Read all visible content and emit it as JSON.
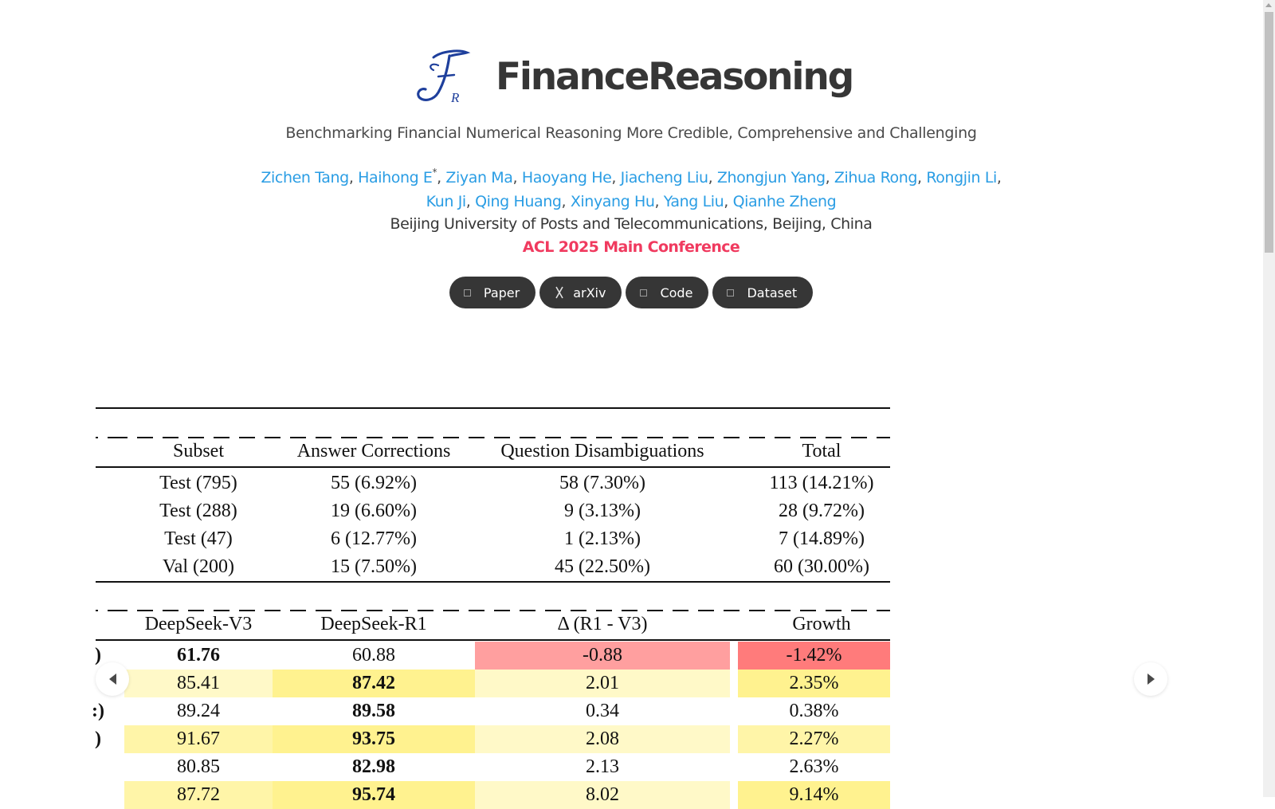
{
  "header": {
    "logo_letters": "F",
    "logo_sub": "R",
    "title": "FinanceReasoning",
    "subtitle": "Benchmarking Financial Numerical Reasoning More Credible, Comprehensive and Challenging",
    "authors_line1": [
      {
        "name": "Zichen Tang"
      },
      {
        "name": "Haihong E",
        "sup": "*"
      },
      {
        "name": "Ziyan Ma"
      },
      {
        "name": "Haoyang He"
      },
      {
        "name": "Jiacheng Liu"
      },
      {
        "name": "Zhongjun Yang"
      },
      {
        "name": "Zihua Rong"
      },
      {
        "name": "Rongjin Li"
      }
    ],
    "authors_line2": [
      {
        "name": "Kun Ji"
      },
      {
        "name": "Qing Huang"
      },
      {
        "name": "Xinyang Hu"
      },
      {
        "name": "Yang Liu"
      },
      {
        "name": "Qianhe Zheng"
      }
    ],
    "affiliation": "Beijing University of Posts and Telecommunications, Beijing, China",
    "venue": "ACL 2025 Main Conference"
  },
  "buttons": [
    {
      "label": "Paper",
      "icon": "file-icon"
    },
    {
      "label": "arXiv",
      "icon": "arxiv-icon"
    },
    {
      "label": "Code",
      "icon": "github-icon"
    },
    {
      "label": "Dataset",
      "icon": "database-icon"
    }
  ],
  "colors": {
    "link": "#2a9de4",
    "venue": "#f03a5f",
    "button_bg": "#363636",
    "heat_red_strong": "#ff7b7b",
    "heat_red_light": "#ff9f9f",
    "heat_yellow_strong": "#fff28f",
    "heat_yellow_mid": "#fff5a8",
    "heat_yellow_light": "#fff9c8"
  },
  "table1": {
    "headers": [
      "Subset",
      "Answer Corrections",
      "Question Disambiguations",
      "Total"
    ],
    "rows": [
      [
        "Test (795)",
        "55 (6.92%)",
        "58 (7.30%)",
        "113 (14.21%)"
      ],
      [
        "Test (288)",
        "19 (6.60%)",
        "9 (3.13%)",
        "28 (9.72%)"
      ],
      [
        "Test (47)",
        "6 (12.77%)",
        "1 (2.13%)",
        "7 (14.89%)"
      ],
      [
        "Val (200)",
        "15 (7.50%)",
        "45 (22.50%)",
        "60 (30.00%)"
      ]
    ]
  },
  "table2": {
    "headers": [
      "DeepSeek-V3",
      "DeepSeek-R1",
      "Δ (R1 - V3)",
      "Growth"
    ],
    "row_label_fragments": [
      ")",
      "",
      ":)",
      ")",
      "",
      ""
    ],
    "rows": [
      [
        "61.76",
        "60.88",
        "-0.88",
        "-1.42%"
      ],
      [
        "85.41",
        "87.42",
        "2.01",
        "2.35%"
      ],
      [
        "89.24",
        "89.58",
        "0.34",
        "0.38%"
      ],
      [
        "91.67",
        "93.75",
        "2.08",
        "2.27%"
      ],
      [
        "80.85",
        "82.98",
        "2.13",
        "2.63%"
      ],
      [
        "87.72",
        "95.74",
        "8.02",
        "9.14%"
      ]
    ]
  },
  "carousel": {
    "prev_label": "previous slide",
    "next_label": "next slide"
  }
}
